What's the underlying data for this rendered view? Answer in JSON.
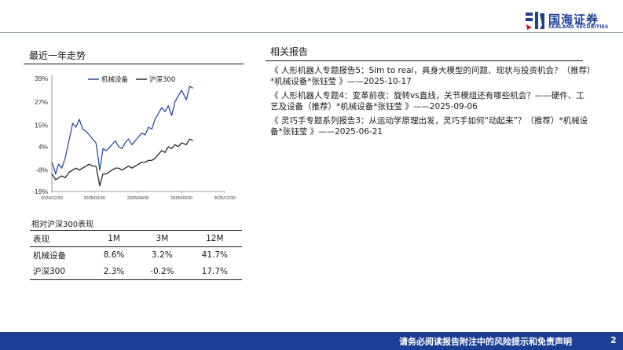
{
  "brand": {
    "name_cn": "国海证券",
    "name_en": "SEALAND SECURITIES",
    "color": "#1c3f95"
  },
  "trend": {
    "title": "最近一年走势"
  },
  "reports": {
    "title": "相关报告",
    "items": [
      "《 人形机器人专题报告5：Sim to real，具身大模型的问题、现状与投资机会？（推荐）*机械设备*张钰莹 》——2025-10-17",
      "《 人形机器人专题4：变革前夜：旋转vs直线，关节模组还有哪些机会？——硬件、工艺及设备（推荐）*机械设备*张钰莹 》——2025-09-06",
      "《 灵巧手专题系列报告3：从运动学原理出发，灵巧手如何“动起来”？（推荐）*机械设备*张钰莹 》——2025-06-21"
    ]
  },
  "performance": {
    "title": "相对沪深300表现",
    "headers": [
      "表现",
      "1M",
      "3M",
      "12M"
    ],
    "rows": [
      [
        "机械设备",
        "8.6%",
        "3.2%",
        "41.7%"
      ],
      [
        "沪深300",
        "2.3%",
        "-0.2%",
        "17.7%"
      ]
    ]
  },
  "chart_data": {
    "type": "line",
    "title": "",
    "xlabel": "",
    "ylabel": "",
    "x_ticks": [
      "2024/12/30",
      "2025/03/30",
      "2025/06/30",
      "2025/09/30",
      "2025/12/30"
    ],
    "x_range": [
      "2024-12-30",
      "2025-12-30"
    ],
    "y_ticks": [
      "39%",
      "27%",
      "15%",
      "4%",
      "-8%",
      "-19%"
    ],
    "ylim": [
      -19,
      39
    ],
    "legend": "top",
    "grid": false,
    "series": [
      {
        "name": "机械设备",
        "color": "#1c3f95",
        "x": [
          "2024-12-30",
          "2025-01-02",
          "2025-01-07",
          "2025-01-13",
          "2025-01-20",
          "2025-01-27",
          "2025-02-05",
          "2025-02-12",
          "2025-02-19",
          "2025-02-26",
          "2025-03-05",
          "2025-03-12",
          "2025-03-19",
          "2025-03-26",
          "2025-04-02",
          "2025-04-07",
          "2025-04-10",
          "2025-04-17",
          "2025-04-24",
          "2025-05-06",
          "2025-05-13",
          "2025-05-20",
          "2025-05-27",
          "2025-06-03",
          "2025-06-10",
          "2025-06-17",
          "2025-06-24",
          "2025-07-01",
          "2025-07-08",
          "2025-07-15",
          "2025-07-22",
          "2025-07-29",
          "2025-08-05",
          "2025-08-12",
          "2025-08-19",
          "2025-08-26",
          "2025-09-02",
          "2025-09-09",
          "2025-09-16",
          "2025-09-23",
          "2025-09-30",
          "2025-10-10",
          "2025-10-17",
          "2025-10-24"
        ],
        "values": [
          -4,
          -6,
          -10,
          -5,
          -7,
          -2,
          8,
          16,
          14,
          18,
          13,
          12,
          10,
          8,
          6,
          -2,
          -8,
          3,
          2,
          5,
          7,
          4,
          3,
          6,
          8,
          5,
          7,
          9,
          11,
          10,
          14,
          13,
          18,
          21,
          24,
          22,
          25,
          20,
          27,
          30,
          33,
          28,
          35,
          34
        ]
      },
      {
        "name": "沪深300",
        "color": "#1a1a1a",
        "x": [
          "2024-12-30",
          "2025-01-02",
          "2025-01-07",
          "2025-01-13",
          "2025-01-20",
          "2025-01-27",
          "2025-02-05",
          "2025-02-12",
          "2025-02-19",
          "2025-02-26",
          "2025-03-05",
          "2025-03-12",
          "2025-03-19",
          "2025-03-26",
          "2025-04-02",
          "2025-04-07",
          "2025-04-10",
          "2025-04-17",
          "2025-04-24",
          "2025-05-06",
          "2025-05-13",
          "2025-05-20",
          "2025-05-27",
          "2025-06-03",
          "2025-06-10",
          "2025-06-17",
          "2025-06-24",
          "2025-07-01",
          "2025-07-08",
          "2025-07-15",
          "2025-07-22",
          "2025-07-29",
          "2025-08-05",
          "2025-08-12",
          "2025-08-19",
          "2025-08-26",
          "2025-09-02",
          "2025-09-09",
          "2025-09-16",
          "2025-09-23",
          "2025-09-30",
          "2025-10-10",
          "2025-10-17",
          "2025-10-24"
        ],
        "values": [
          -10,
          -11,
          -13,
          -12,
          -11,
          -12,
          -9,
          -8,
          -7,
          -8,
          -7,
          -6,
          -5,
          -6,
          -6,
          -12,
          -16,
          -10,
          -10,
          -8,
          -7,
          -7,
          -8,
          -7,
          -6,
          -7,
          -6,
          -5,
          -4,
          -4,
          -3,
          -3,
          -2,
          0,
          2,
          1,
          4,
          3,
          5,
          4,
          6,
          5,
          8,
          7
        ]
      }
    ]
  },
  "footer": {
    "disclaimer": "请务必阅读报告附注中的风险提示和免责声明",
    "page": "2"
  }
}
